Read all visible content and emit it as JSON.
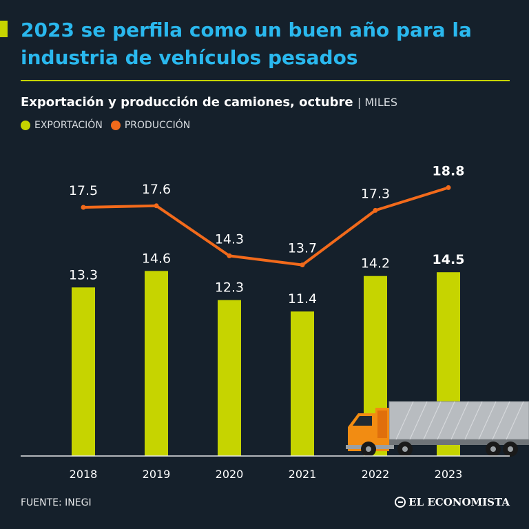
{
  "header": {
    "title": "2023 se perfila como un buen año para la industria de vehículos pesados",
    "subtitle": "Exportación y producción de camiones, octubre",
    "unit": "| MILES"
  },
  "legend": {
    "export_label": "EXPORTACIÓN",
    "production_label": "PRODUCCIÓN"
  },
  "colors": {
    "accent": "#c6d400",
    "title": "#2ab8ee",
    "export": "#c6d400",
    "production": "#f26a1b",
    "background": "#15202b"
  },
  "chart_data": {
    "type": "bar+line",
    "title": "Exportación y producción de camiones, octubre",
    "ylabel": "Miles",
    "xlabel": "",
    "categories": [
      "2018",
      "2019",
      "2020",
      "2021",
      "2022",
      "2023"
    ],
    "series": [
      {
        "name": "EXPORTACIÓN",
        "type": "bar",
        "values": [
          13.3,
          14.6,
          12.3,
          11.4,
          14.2,
          14.5
        ],
        "labels": [
          "13.3",
          "14.6",
          "12.3",
          "11.4",
          "14.2",
          "14.5"
        ]
      },
      {
        "name": "PRODUCCIÓN",
        "type": "line",
        "values": [
          17.5,
          17.6,
          14.3,
          13.7,
          17.3,
          18.8
        ],
        "labels": [
          "17.5",
          "17.6",
          "14.3",
          "13.7",
          "17.3",
          "18.8"
        ]
      }
    ],
    "grid": false,
    "legend_position": "top-left",
    "highlight_category": "2023"
  },
  "footer": {
    "source": "FUENTE: INEGI",
    "brand": "EL ECONOMISTA"
  }
}
